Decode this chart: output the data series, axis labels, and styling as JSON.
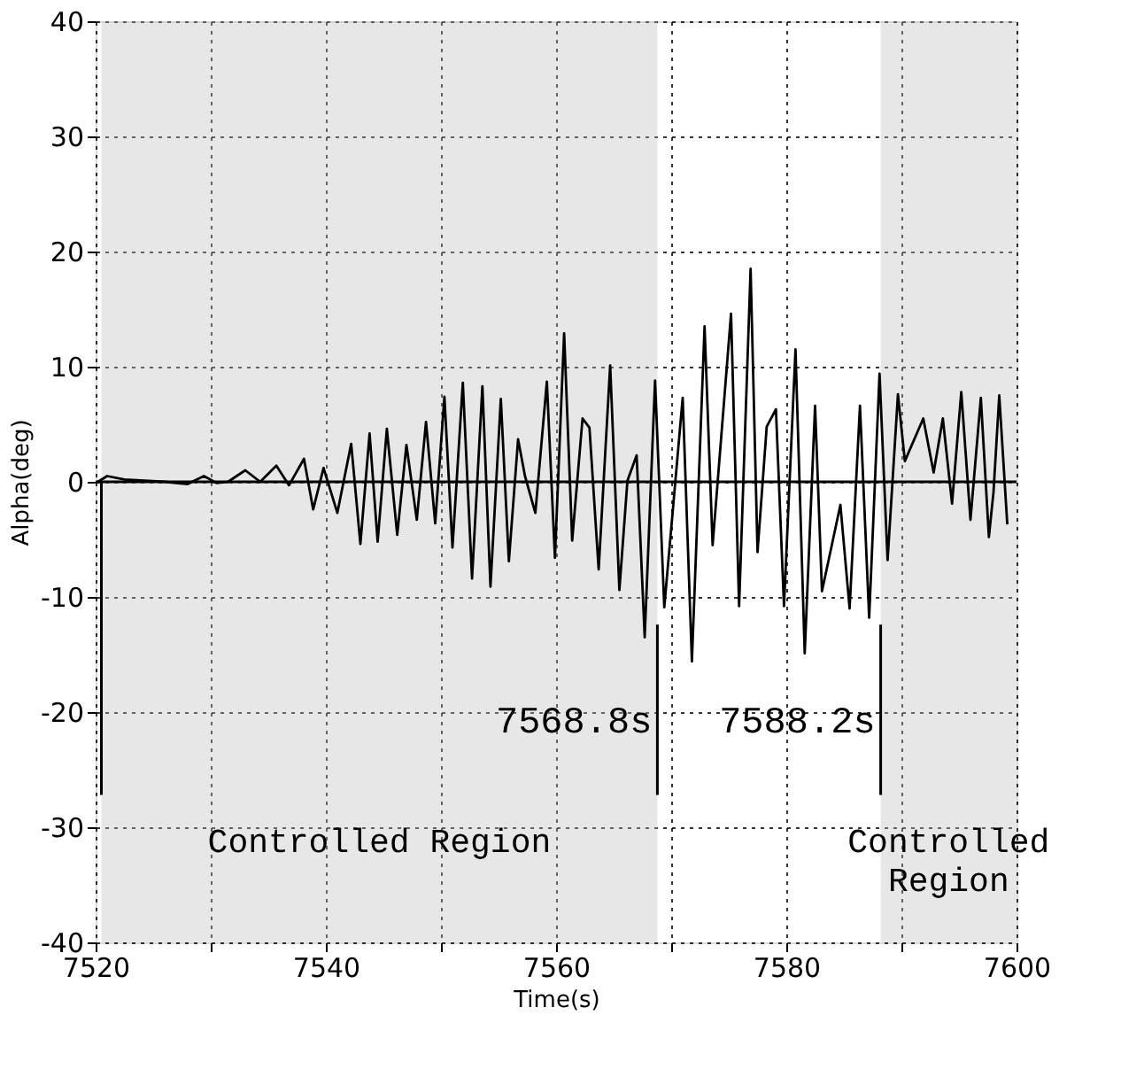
{
  "chart_data": {
    "type": "line",
    "xlabel": "Time(s)",
    "ylabel": "Alpha(deg)",
    "xlim": [
      7520,
      7600
    ],
    "ylim": [
      -40,
      40
    ],
    "xticks": [
      7520,
      {
        "value": 7530,
        "label": null
      },
      7540,
      {
        "value": 7550,
        "label": null
      },
      7560,
      {
        "value": 7570,
        "label": null
      },
      7580,
      {
        "value": 7590,
        "label": null
      },
      7600
    ],
    "yticks": [
      -40,
      -30,
      -20,
      -10,
      0,
      10,
      20,
      30,
      40
    ],
    "grid": true,
    "line_style": "solid",
    "marker": "none",
    "series": [
      {
        "color": "#000000",
        "x": [
          7520.2,
          7521,
          7522.5,
          7526,
          7528,
          7529.4,
          7530.5,
          7531.5,
          7533,
          7534.3,
          7535.7,
          7536.8,
          7538.1,
          7538.9,
          7539.8,
          7541,
          7542.2,
          7543,
          7543.8,
          7544.5,
          7545.3,
          7546.2,
          7547,
          7547.9,
          7548.7,
          7549.5,
          7550.3,
          7551,
          7551.9,
          7552.7,
          7553.6,
          7554.3,
          7555.2,
          7555.9,
          7556.7,
          7557.3,
          7558.2,
          7559.2,
          7559.9,
          7560.7,
          7561.4,
          7562.3,
          7562.9,
          7563.7,
          7564.7,
          7565.5,
          7566.2,
          7567,
          7567.7,
          7568.6,
          7569.4,
          7571,
          7571.8,
          7572.9,
          7573.6,
          7575.2,
          7575.9,
          7576.9,
          7577.5,
          7578.3,
          7579.1,
          7579.8,
          7580.8,
          7581.6,
          7582.5,
          7583.1,
          7584.7,
          7585.5,
          7586.4,
          7587.2,
          7588.1,
          7588.8,
          7589.7,
          7590.3,
          7591.9,
          7592.8,
          7593.6,
          7594.4,
          7595.2,
          7596,
          7596.9,
          7597.6,
          7598,
          7598.5,
          7599.2
        ],
        "values": [
          0,
          0.5,
          0.2,
          0,
          -0.2,
          0.5,
          -0.1,
          0,
          1,
          0,
          1.4,
          -0.3,
          2,
          -2.4,
          1.2,
          -2.7,
          3.3,
          -5.4,
          4.2,
          -5.2,
          4.6,
          -4.6,
          3.2,
          -3.3,
          5.2,
          -3.6,
          7.4,
          -5.7,
          8.6,
          -8.4,
          8.3,
          -9.1,
          7.2,
          -6.9,
          3.7,
          0.5,
          -2.7,
          8.7,
          -6.6,
          12.9,
          -5.1,
          5.5,
          4.7,
          -7.6,
          10.1,
          -9.4,
          0.1,
          2.3,
          -13.5,
          8.8,
          -10.9,
          7.3,
          -15.6,
          13.5,
          -5.5,
          14.6,
          -10.8,
          18.5,
          -6.1,
          4.8,
          6.3,
          -10.8,
          11.5,
          -14.9,
          6.6,
          -9.5,
          -2,
          -11,
          6.6,
          -11.8,
          9.4,
          -6.8,
          7.6,
          1.8,
          5.5,
          0.8,
          5.5,
          -1.9,
          7.8,
          -3.3,
          7.3,
          -4.8,
          -0.9,
          7.5,
          -3.7
        ]
      }
    ],
    "ref_lines": [
      {
        "axis": "y",
        "value": 0,
        "line_style": "solid"
      },
      {
        "axis": "x",
        "value": 7520.5
      },
      {
        "axis": "x",
        "value": 7568.8,
        "label": "7568.8s"
      },
      {
        "axis": "x",
        "value": 7588.2,
        "label": "7588.2s"
      }
    ],
    "bands": [
      {
        "axis": "x",
        "from": 7520.5,
        "to": 7568.8,
        "label": "Controlled Region",
        "color": "#bbbbbb"
      },
      {
        "axis": "x",
        "from": 7588.2,
        "to": 7600,
        "label": "Controlled Region",
        "color": "#bbbbbb"
      }
    ]
  }
}
